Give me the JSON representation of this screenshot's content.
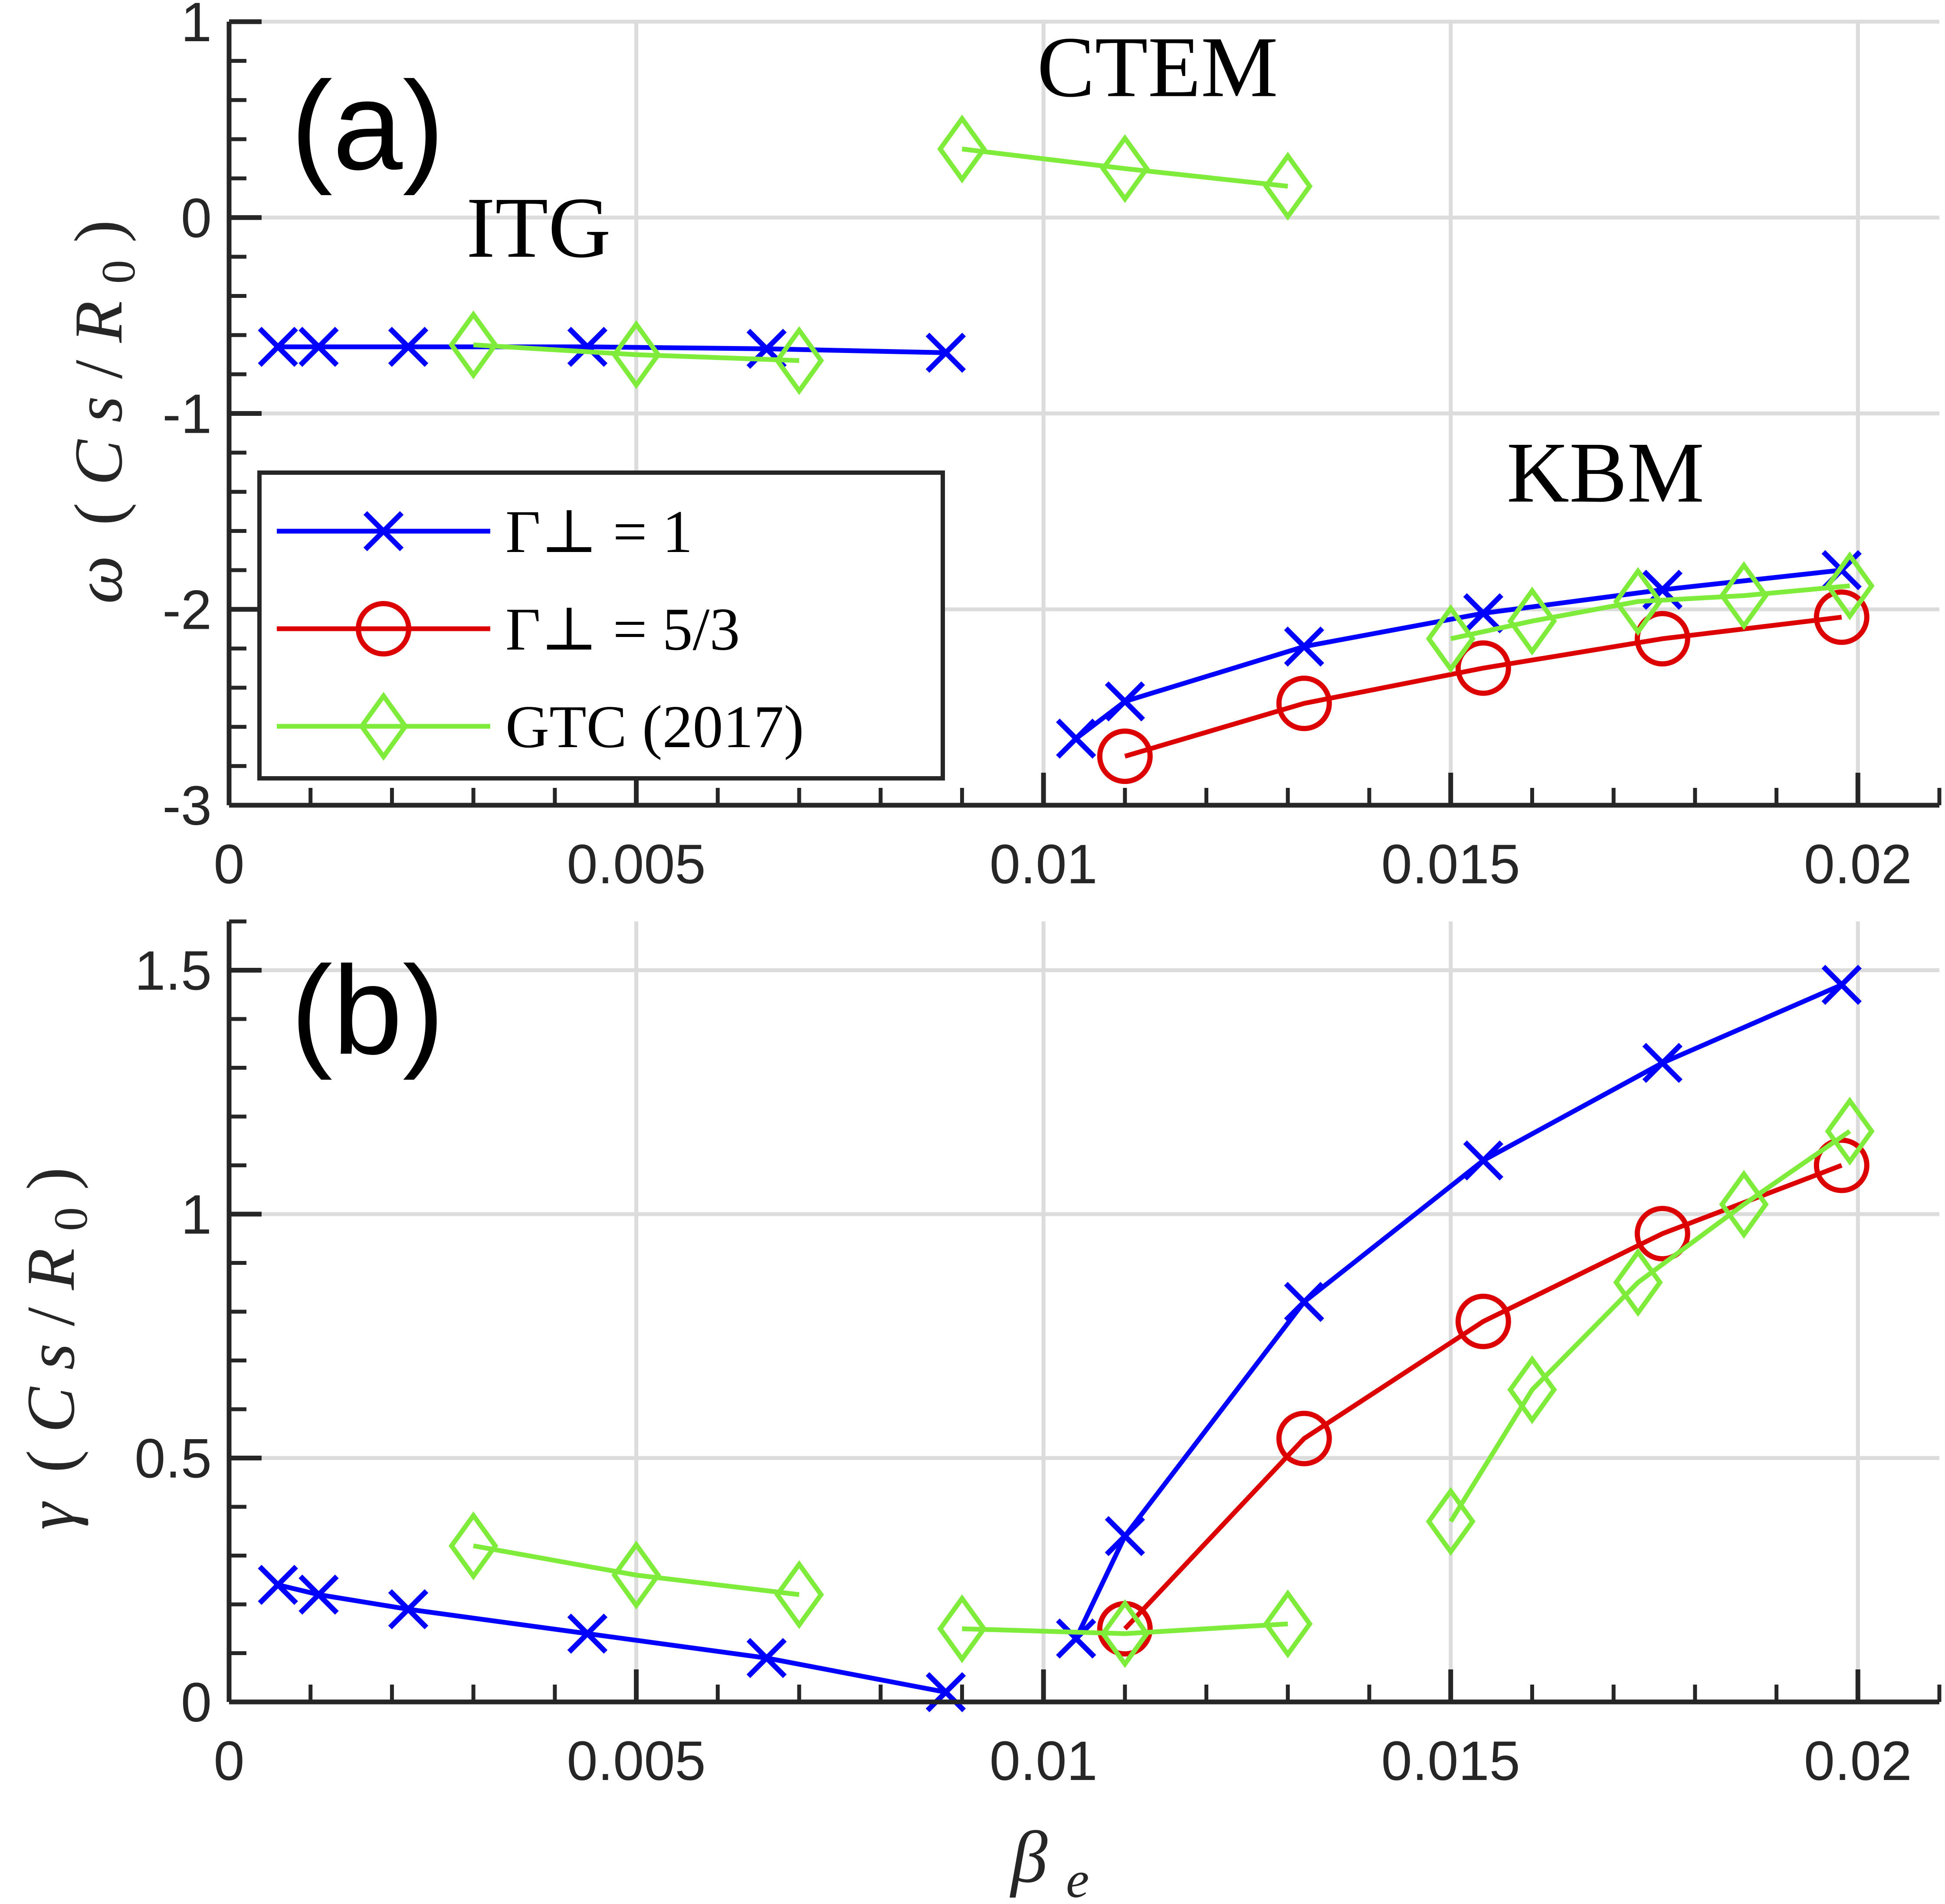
{
  "chart_data": [
    {
      "type": "line",
      "panel": "a",
      "panel_label": "(a)",
      "ylabel": "ω (Cs/R0)",
      "ylabel_parts": {
        "symbol": "ω",
        "open": "(",
        "c": "C",
        "s": "s",
        "slash": "/",
        "r": "R",
        "sub": "0",
        "close": ")"
      },
      "xlim": [
        0,
        0.021
      ],
      "ylim": [
        -3,
        1
      ],
      "grid": true,
      "xticks": [
        0,
        0.005,
        0.01,
        0.015,
        0.02
      ],
      "xtick_labels": [
        "0",
        "0.005",
        "0.01",
        "0.015",
        "0.02"
      ],
      "yticks": [
        -3,
        -2,
        -1,
        0,
        1
      ],
      "ytick_labels": [
        "-3",
        "-2",
        "-1",
        "0",
        "1"
      ],
      "annotations": [
        {
          "text": "ITG",
          "x": 0.0038,
          "y": -0.2
        },
        {
          "text": "CTEM",
          "x": 0.0114,
          "y": 0.62
        },
        {
          "text": "KBM",
          "x": 0.0169,
          "y": -1.45
        }
      ],
      "series": [
        {
          "name": "Γ⊥ = 1",
          "color": "#0000ff",
          "marker": "x",
          "segments": [
            {
              "x": [
                0.0006,
                0.0011,
                0.0022,
                0.0044,
                0.0066,
                0.0088
              ],
              "y": [
                -0.66,
                -0.66,
                -0.66,
                -0.66,
                -0.67,
                -0.69
              ]
            },
            {
              "x": [
                0.0104,
                0.011,
                0.0132,
                0.0154,
                0.0176,
                0.0198
              ],
              "y": [
                -2.66,
                -2.47,
                -2.19,
                -2.02,
                -1.9,
                -1.8
              ]
            }
          ]
        },
        {
          "name": "Γ⊥ = 5/3",
          "color": "#dd0000",
          "marker": "o",
          "segments": [
            {
              "x": [
                0.011,
                0.0132,
                0.0154,
                0.0176,
                0.0198
              ],
              "y": [
                -2.75,
                -2.48,
                -2.3,
                -2.15,
                -2.04
              ]
            }
          ]
        },
        {
          "name": "GTC (2017)",
          "color": "#7fec3b",
          "marker": "diamond",
          "segments": [
            {
              "x": [
                0.003,
                0.005,
                0.007
              ],
              "y": [
                -0.65,
                -0.7,
                -0.73
              ]
            },
            {
              "x": [
                0.009,
                0.011,
                0.013
              ],
              "y": [
                0.35,
                0.25,
                0.16
              ]
            },
            {
              "x": [
                0.015,
                0.016,
                0.0173,
                0.0186,
                0.0199
              ],
              "y": [
                -2.15,
                -2.06,
                -1.96,
                -1.93,
                -1.88
              ]
            }
          ]
        }
      ],
      "legend": {
        "position": "lower-left",
        "entries": [
          "Γ⊥ = 1",
          "Γ⊥ = 5/3",
          "GTC (2017)"
        ]
      }
    },
    {
      "type": "line",
      "panel": "b",
      "panel_label": "(b)",
      "xlabel": "βe",
      "xlabel_parts": {
        "symbol": "β",
        "sub": "e"
      },
      "ylabel": "γ (Cs/R0)",
      "ylabel_parts": {
        "symbol": "γ",
        "open": "(",
        "c": "C",
        "s": "s",
        "slash": "/",
        "r": "R",
        "sub": "0",
        "close": ")"
      },
      "xlim": [
        0,
        0.021
      ],
      "ylim": [
        0,
        1.6
      ],
      "grid": true,
      "xticks": [
        0,
        0.005,
        0.01,
        0.015,
        0.02
      ],
      "xtick_labels": [
        "0",
        "0.005",
        "0.01",
        "0.015",
        "0.02"
      ],
      "yticks": [
        0,
        0.5,
        1,
        1.5
      ],
      "ytick_labels": [
        "0",
        "0.5",
        "1",
        "1.5"
      ],
      "series": [
        {
          "name": "Γ⊥ = 1",
          "color": "#0000ff",
          "marker": "x",
          "segments": [
            {
              "x": [
                0.0006,
                0.0011,
                0.0022,
                0.0044,
                0.0066,
                0.0088
              ],
              "y": [
                0.24,
                0.22,
                0.19,
                0.14,
                0.09,
                0.02
              ]
            },
            {
              "x": [
                0.0104,
                0.011,
                0.0132,
                0.0154,
                0.0176,
                0.0198
              ],
              "y": [
                0.13,
                0.34,
                0.82,
                1.11,
                1.31,
                1.47
              ]
            }
          ]
        },
        {
          "name": "Γ⊥ = 5/3",
          "color": "#dd0000",
          "marker": "o",
          "segments": [
            {
              "x": [
                0.011,
                0.0132,
                0.0154,
                0.0176,
                0.0198
              ],
              "y": [
                0.15,
                0.54,
                0.78,
                0.96,
                1.1
              ]
            }
          ]
        },
        {
          "name": "GTC (2017)",
          "color": "#7fec3b",
          "marker": "diamond",
          "segments": [
            {
              "x": [
                0.003,
                0.005,
                0.007
              ],
              "y": [
                0.32,
                0.26,
                0.22
              ]
            },
            {
              "x": [
                0.009,
                0.011,
                0.013
              ],
              "y": [
                0.15,
                0.14,
                0.16
              ]
            },
            {
              "x": [
                0.015,
                0.016,
                0.0173,
                0.0186,
                0.0199
              ],
              "y": [
                0.37,
                0.64,
                0.86,
                1.02,
                1.17
              ]
            }
          ]
        }
      ]
    }
  ]
}
